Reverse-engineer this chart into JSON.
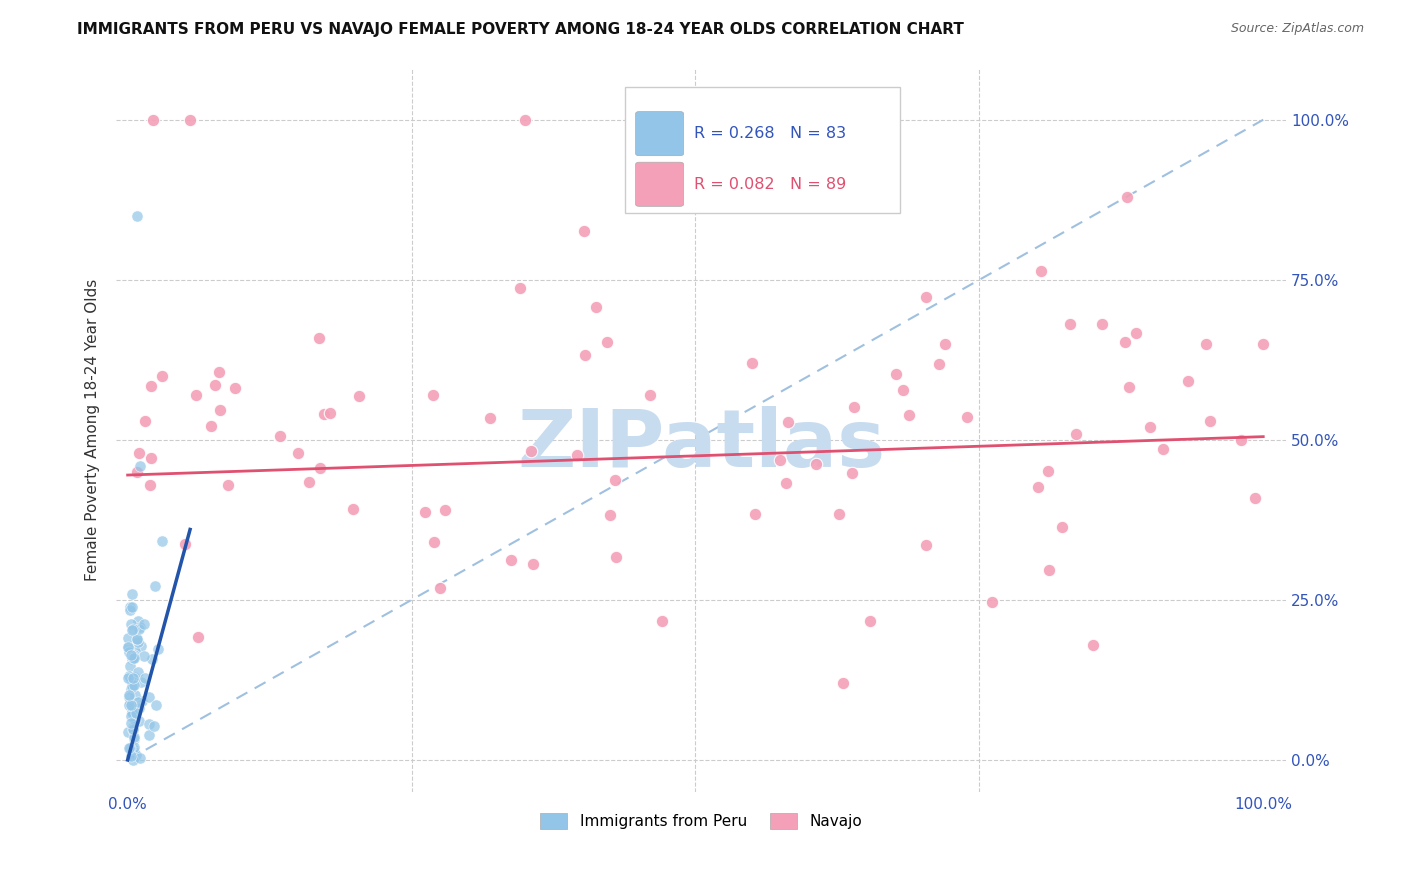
{
  "title": "IMMIGRANTS FROM PERU VS NAVAJO FEMALE POVERTY AMONG 18-24 YEAR OLDS CORRELATION CHART",
  "source": "Source: ZipAtlas.com",
  "ylabel": "Female Poverty Among 18-24 Year Olds",
  "xlim": [
    -0.01,
    1.02
  ],
  "ylim": [
    -0.05,
    1.08
  ],
  "legend_r_blue": "R = 0.268",
  "legend_n_blue": "N = 83",
  "legend_r_pink": "R = 0.082",
  "legend_n_pink": "N = 89",
  "legend_label_blue": "Immigrants from Peru",
  "legend_label_pink": "Navajo",
  "blue_color": "#92C5E8",
  "pink_color": "#F4A0B8",
  "blue_line_color": "#2255AA",
  "pink_line_color": "#E05070",
  "diagonal_color": "#A0C0E0",
  "watermark_color": "#C8DCF0",
  "pink_trend_x0": 0.0,
  "pink_trend_y0": 0.445,
  "pink_trend_x1": 1.0,
  "pink_trend_y1": 0.505,
  "blue_trend_x0": 0.0,
  "blue_trend_y0": 0.0,
  "blue_trend_x1": 0.055,
  "blue_trend_y1": 0.36
}
